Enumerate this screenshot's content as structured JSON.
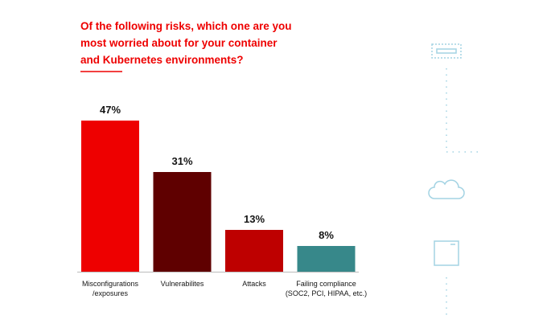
{
  "chart_data": {
    "type": "bar",
    "title": "Of the following risks, which one are you most worried about for your container and Kubernetes environments?",
    "categories": [
      "Misconfigurations\n/exposures",
      "Vulnerabilites",
      "Attacks",
      "Failing compliance\n(SOC2, PCI, HIPAA, etc.)"
    ],
    "values": [
      47,
      31,
      13,
      8
    ],
    "value_labels": [
      "47%",
      "31%",
      "13%",
      "8%"
    ],
    "colors": [
      "#ee0000",
      "#5f0000",
      "#be0000",
      "#37888a"
    ]
  }
}
